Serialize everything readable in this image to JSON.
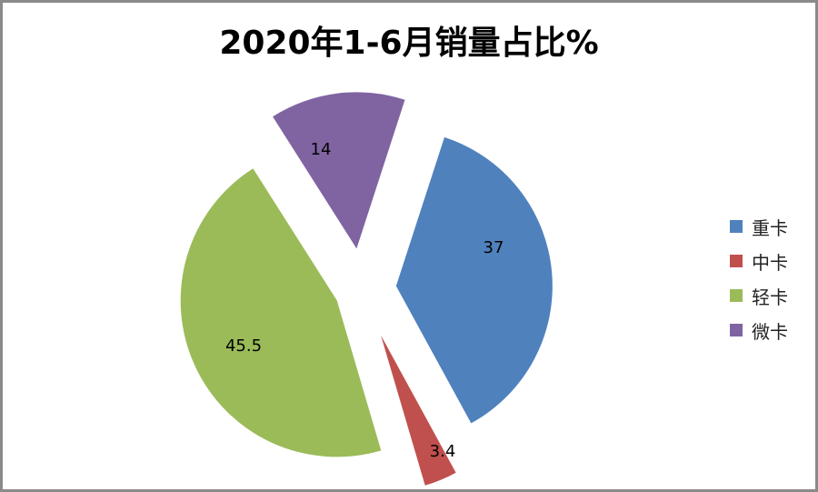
{
  "title": "2020年1-6月销量占比%",
  "chart_data": {
    "type": "pie",
    "title": "2020年1-6月销量占比%",
    "categories": [
      "重卡",
      "中卡",
      "轻卡",
      "微卡"
    ],
    "values": [
      37,
      3.4,
      45.5,
      14
    ],
    "colors": [
      "#4f81bd",
      "#c0504d",
      "#9bbb59",
      "#8064a2"
    ],
    "data_labels": [
      "37",
      "3.4",
      "45.5",
      "14"
    ],
    "exploded": true,
    "legend_position": "right"
  },
  "legend": [
    {
      "label": "重卡",
      "color": "#4f81bd"
    },
    {
      "label": "中卡",
      "color": "#c0504d"
    },
    {
      "label": "轻卡",
      "color": "#9bbb59"
    },
    {
      "label": "微卡",
      "color": "#8064a2"
    }
  ]
}
